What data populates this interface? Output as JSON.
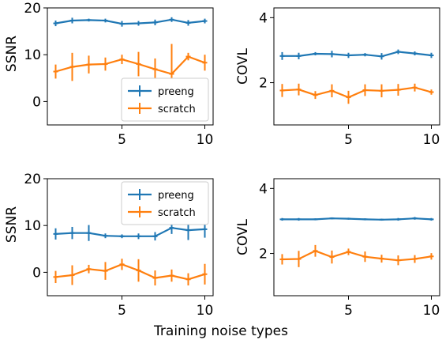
{
  "colors": {
    "preeng": "#1f77b4",
    "scratch": "#ff7f0e"
  },
  "figure": {
    "xlabel": "Training noise types"
  },
  "chart_data": [
    {
      "type": "line",
      "ylabel": "SSNR",
      "xlim": [
        0.5,
        10.5
      ],
      "ylim": [
        -5,
        20
      ],
      "xticks": [
        5,
        10
      ],
      "yticks": [
        0,
        10,
        20
      ],
      "legend": "lower-right",
      "x": [
        1,
        2,
        3,
        4,
        5,
        6,
        7,
        8,
        9,
        10
      ],
      "series": [
        {
          "name": "preeng",
          "color": "preeng",
          "values": [
            16.7,
            17.3,
            17.4,
            17.3,
            16.6,
            16.7,
            16.9,
            17.5,
            16.8,
            17.2
          ],
          "errors": [
            0.6,
            0.6,
            0.3,
            0.4,
            0.6,
            0.5,
            0.6,
            0.5,
            0.6,
            0.5
          ]
        },
        {
          "name": "scratch",
          "color": "scratch",
          "values": [
            6.4,
            7.4,
            7.9,
            8.0,
            9.0,
            8.0,
            6.9,
            5.9,
            9.6,
            8.3
          ],
          "errors": [
            1.5,
            3.0,
            1.9,
            1.4,
            1.0,
            2.6,
            2.3,
            6.4,
            0.8,
            1.7
          ]
        }
      ]
    },
    {
      "type": "line",
      "ylabel": "COVL",
      "xlim": [
        0.5,
        10.5
      ],
      "ylim": [
        0.7,
        4.3
      ],
      "xticks": [
        5,
        10
      ],
      "yticks": [
        2,
        4
      ],
      "x": [
        1,
        2,
        3,
        4,
        5,
        6,
        7,
        8,
        9,
        10
      ],
      "series": [
        {
          "name": "preeng",
          "color": "preeng",
          "values": [
            2.82,
            2.82,
            2.89,
            2.88,
            2.84,
            2.86,
            2.81,
            2.95,
            2.9,
            2.84
          ],
          "errors": [
            0.12,
            0.1,
            0.05,
            0.1,
            0.08,
            0.05,
            0.1,
            0.07,
            0.06,
            0.08
          ]
        },
        {
          "name": "scratch",
          "color": "scratch",
          "values": [
            1.76,
            1.79,
            1.62,
            1.75,
            1.55,
            1.77,
            1.75,
            1.78,
            1.85,
            1.71
          ],
          "errors": [
            0.2,
            0.18,
            0.12,
            0.2,
            0.2,
            0.18,
            0.2,
            0.18,
            0.12,
            0.08
          ]
        }
      ]
    },
    {
      "type": "line",
      "ylabel": "SSNR",
      "xlim": [
        0.5,
        10.5
      ],
      "ylim": [
        -5,
        20
      ],
      "xticks": [
        5,
        10
      ],
      "yticks": [
        0,
        10,
        20
      ],
      "legend": "upper-right",
      "x": [
        1,
        2,
        3,
        4,
        5,
        6,
        7,
        8,
        9,
        10
      ],
      "series": [
        {
          "name": "preeng",
          "color": "preeng",
          "values": [
            8.2,
            8.4,
            8.4,
            7.8,
            7.7,
            7.7,
            7.7,
            9.5,
            9.0,
            9.2
          ],
          "errors": [
            1.2,
            1.3,
            1.7,
            0.5,
            0.4,
            0.6,
            0.9,
            1.3,
            2.1,
            1.8
          ]
        },
        {
          "name": "scratch",
          "color": "scratch",
          "values": [
            -1.0,
            -0.6,
            0.7,
            0.3,
            1.7,
            0.4,
            -1.2,
            -0.7,
            -1.5,
            -0.4
          ],
          "errors": [
            1.3,
            2.1,
            0.9,
            1.9,
            1.2,
            2.4,
            1.6,
            1.3,
            1.3,
            2.2
          ]
        }
      ]
    },
    {
      "type": "line",
      "ylabel": "COVL",
      "xlim": [
        0.5,
        10.5
      ],
      "ylim": [
        0.7,
        4.3
      ],
      "xticks": [
        5,
        10
      ],
      "yticks": [
        2,
        4
      ],
      "x": [
        1,
        2,
        3,
        4,
        5,
        6,
        7,
        8,
        9,
        10
      ],
      "series": [
        {
          "name": "preeng",
          "color": "preeng",
          "values": [
            3.05,
            3.05,
            3.05,
            3.08,
            3.07,
            3.05,
            3.04,
            3.05,
            3.08,
            3.05
          ],
          "errors": [
            0.04,
            0.04,
            0.03,
            0.03,
            0.03,
            0.03,
            0.03,
            0.04,
            0.04,
            0.04
          ]
        },
        {
          "name": "scratch",
          "color": "scratch",
          "values": [
            1.82,
            1.83,
            2.08,
            1.89,
            2.05,
            1.9,
            1.84,
            1.79,
            1.83,
            1.91
          ],
          "errors": [
            0.16,
            0.25,
            0.18,
            0.2,
            0.1,
            0.16,
            0.12,
            0.15,
            0.12,
            0.1
          ]
        }
      ]
    }
  ]
}
